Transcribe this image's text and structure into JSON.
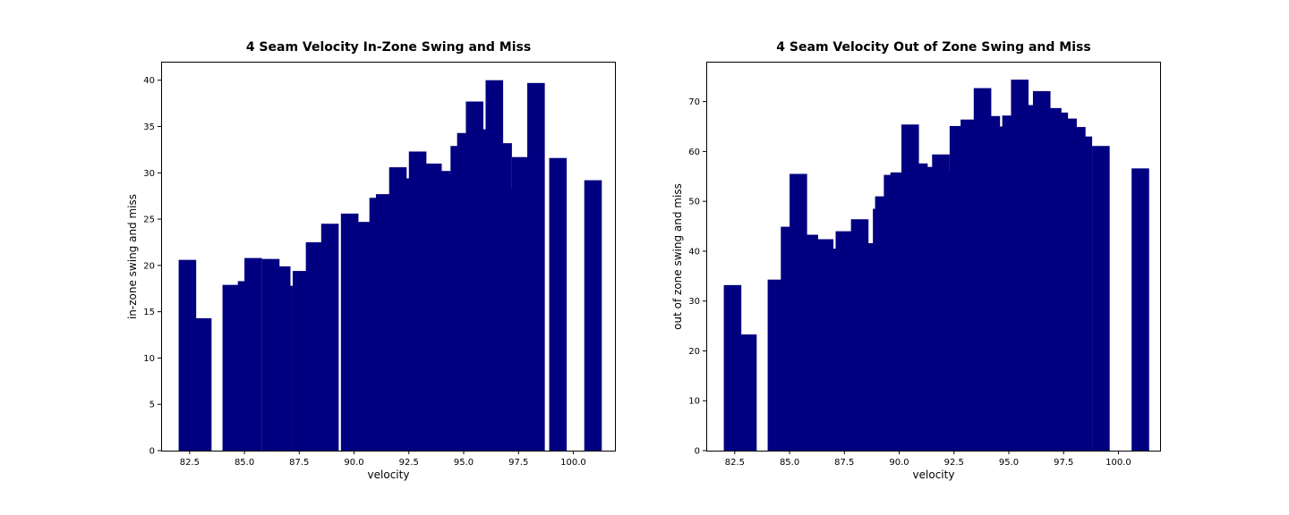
{
  "chart_data": [
    {
      "type": "bar",
      "title": "4 Seam Velocity In-Zone Swing and Miss",
      "xlabel": "velocity",
      "ylabel": "in-zone swing and miss",
      "xlim": [
        81.2,
        101.9
      ],
      "ylim": [
        0,
        42
      ],
      "xticks": [
        82.5,
        85.0,
        87.5,
        90.0,
        92.5,
        95.0,
        97.5,
        100.0
      ],
      "xtick_labels": [
        "82.5",
        "85.0",
        "87.5",
        "90.0",
        "92.5",
        "95.0",
        "97.5",
        "100.0"
      ],
      "yticks": [
        0,
        5,
        10,
        15,
        20,
        25,
        30,
        35,
        40
      ],
      "ytick_labels": [
        "0",
        "5",
        "10",
        "15",
        "20",
        "25",
        "30",
        "35",
        "40"
      ],
      "bar_width": 0.8,
      "color": "#000080",
      "grid": false,
      "x": [
        82.4,
        83.1,
        84.4,
        84.7,
        85.1,
        85.4,
        86.2,
        86.7,
        86.8,
        87.6,
        88.2,
        88.9,
        89.8,
        90.0,
        90.5,
        91.1,
        91.4,
        92.0,
        92.3,
        92.9,
        93.6,
        94.0,
        94.3,
        94.8,
        95.1,
        95.5,
        95.8,
        96.4,
        96.8,
        97.1,
        97.6,
        98.3,
        99.3,
        100.9
      ],
      "values": [
        20.6,
        14.3,
        17.9,
        16.2,
        18.3,
        20.8,
        20.7,
        19.9,
        17.8,
        19.4,
        22.5,
        24.5,
        25.6,
        24.3,
        24.7,
        27.3,
        27.7,
        30.6,
        29.4,
        32.3,
        31.0,
        30.2,
        29.9,
        32.9,
        34.3,
        37.7,
        34.7,
        40.0,
        33.2,
        28.2,
        31.7,
        39.7,
        31.6,
        29.2
      ]
    },
    {
      "type": "bar",
      "title": "4 Seam Velocity Out of Zone Swing and Miss",
      "xlabel": "velocity",
      "ylabel": "out of zone swing and miss",
      "xlim": [
        81.2,
        101.9
      ],
      "ylim": [
        0,
        78
      ],
      "xticks": [
        82.5,
        85.0,
        87.5,
        90.0,
        92.5,
        95.0,
        97.5,
        100.0
      ],
      "xtick_labels": [
        "82.5",
        "85.0",
        "87.5",
        "90.0",
        "92.5",
        "95.0",
        "97.5",
        "100.0"
      ],
      "yticks": [
        0,
        10,
        20,
        30,
        40,
        50,
        60,
        70
      ],
      "ytick_labels": [
        "0",
        "10",
        "20",
        "30",
        "40",
        "50",
        "60",
        "70"
      ],
      "bar_width": 0.8,
      "color": "#000080",
      "grid": false,
      "x": [
        82.4,
        83.1,
        84.4,
        84.7,
        85.0,
        85.4,
        85.9,
        86.1,
        86.6,
        87.1,
        87.5,
        88.2,
        88.8,
        89.2,
        89.3,
        89.7,
        90.0,
        90.5,
        90.9,
        91.2,
        91.9,
        92.4,
        92.7,
        93.2,
        93.8,
        94.2,
        94.5,
        94.8,
        95.1,
        95.5,
        96.1,
        96.5,
        97.0,
        97.3,
        97.7,
        98.1,
        98.4,
        99.2,
        101.0
      ],
      "values": [
        33.2,
        23.3,
        34.3,
        31.2,
        44.9,
        55.5,
        43.3,
        41.2,
        42.4,
        40.5,
        44.0,
        46.4,
        41.6,
        48.5,
        51.0,
        55.3,
        55.8,
        65.4,
        57.6,
        56.9,
        59.4,
        56.2,
        65.1,
        66.4,
        72.7,
        67.1,
        64.4,
        65.0,
        67.2,
        74.4,
        69.3,
        72.1,
        68.7,
        67.8,
        66.6,
        64.9,
        63.0,
        61.1,
        56.6
      ]
    }
  ]
}
